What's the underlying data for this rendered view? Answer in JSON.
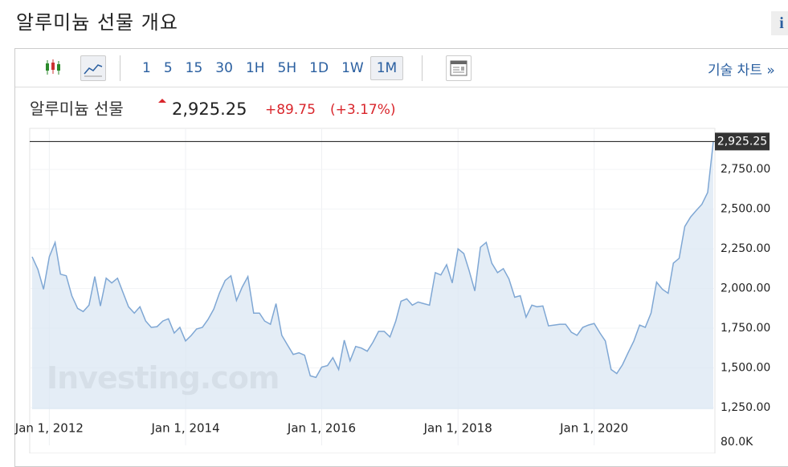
{
  "header": {
    "title": "알루미늄 선물 개요",
    "info": "i"
  },
  "toolbar": {
    "intervals": [
      "1",
      "5",
      "15",
      "30",
      "1H",
      "5H",
      "1D",
      "1W",
      "1M"
    ],
    "selected": "1M",
    "tech_chart": "기술 차트 »"
  },
  "quote": {
    "name": "알루미늄 선물",
    "price": "2,925.25",
    "change": "+89.75",
    "change_pct": "(+3.17%)"
  },
  "chart_data": {
    "type": "area",
    "watermark": "Investing.com",
    "x": [
      "2011-10",
      "2011-11",
      "2011-12",
      "2012-01",
      "2012-02",
      "2012-03",
      "2012-04",
      "2012-05",
      "2012-06",
      "2012-07",
      "2012-08",
      "2012-09",
      "2012-10",
      "2012-11",
      "2012-12",
      "2013-01",
      "2013-02",
      "2013-03",
      "2013-04",
      "2013-05",
      "2013-06",
      "2013-07",
      "2013-08",
      "2013-09",
      "2013-10",
      "2013-11",
      "2013-12",
      "2014-01",
      "2014-02",
      "2014-03",
      "2014-04",
      "2014-05",
      "2014-06",
      "2014-07",
      "2014-08",
      "2014-09",
      "2014-10",
      "2014-11",
      "2014-12",
      "2015-01",
      "2015-02",
      "2015-03",
      "2015-04",
      "2015-05",
      "2015-06",
      "2015-07",
      "2015-08",
      "2015-09",
      "2015-10",
      "2015-11",
      "2015-12",
      "2016-01",
      "2016-02",
      "2016-03",
      "2016-04",
      "2016-05",
      "2016-06",
      "2016-07",
      "2016-08",
      "2016-09",
      "2016-10",
      "2016-11",
      "2016-12",
      "2017-01",
      "2017-02",
      "2017-03",
      "2017-04",
      "2017-05",
      "2017-06",
      "2017-07",
      "2017-08",
      "2017-09",
      "2017-10",
      "2017-11",
      "2017-12",
      "2018-01",
      "2018-02",
      "2018-03",
      "2018-04",
      "2018-05",
      "2018-06",
      "2018-07",
      "2018-08",
      "2018-09",
      "2018-10",
      "2018-11",
      "2018-12",
      "2019-01",
      "2019-02",
      "2019-03",
      "2019-04",
      "2019-05",
      "2019-06",
      "2019-07",
      "2019-08",
      "2019-09",
      "2019-10",
      "2019-11",
      "2019-12",
      "2020-01",
      "2020-02",
      "2020-03",
      "2020-04",
      "2020-05",
      "2020-06",
      "2020-07",
      "2020-08",
      "2020-09",
      "2020-10",
      "2020-11",
      "2020-12",
      "2021-01",
      "2021-02",
      "2021-03",
      "2021-04",
      "2021-05",
      "2021-06",
      "2021-07",
      "2021-08",
      "2021-09",
      "2021-10"
    ],
    "series": [
      {
        "color": "#7fa7d4",
        "values": [
          2200,
          2120,
          1995,
          2200,
          2290,
          2090,
          2080,
          1955,
          1875,
          1855,
          1895,
          2075,
          1890,
          2065,
          2035,
          2065,
          1970,
          1885,
          1845,
          1885,
          1795,
          1755,
          1760,
          1795,
          1810,
          1720,
          1755,
          1670,
          1705,
          1745,
          1755,
          1805,
          1870,
          1970,
          2050,
          2080,
          1925,
          2010,
          2075,
          1845,
          1845,
          1795,
          1775,
          1905,
          1705,
          1645,
          1585,
          1595,
          1580,
          1450,
          1440,
          1505,
          1515,
          1565,
          1490,
          1675,
          1545,
          1635,
          1625,
          1605,
          1660,
          1730,
          1730,
          1695,
          1795,
          1920,
          1935,
          1895,
          1915,
          1905,
          1895,
          2100,
          2085,
          2150,
          2035,
          2250,
          2220,
          2115,
          1985,
          2260,
          2290,
          2160,
          2100,
          2125,
          2060,
          1945,
          1955,
          1820,
          1895,
          1885,
          1890,
          1765,
          1770,
          1775,
          1775,
          1725,
          1705,
          1755,
          1770,
          1780,
          1720,
          1670,
          1490,
          1465,
          1520,
          1595,
          1670,
          1770,
          1755,
          1845,
          2040,
          1995,
          1970,
          2160,
          2190,
          2390,
          2450,
          2490,
          2530,
          2605,
          2925.25
        ]
      }
    ],
    "xlim": [
      "2011-10",
      "2021-10"
    ],
    "xticks": [
      {
        "value": "2012-01",
        "label": "Jan 1, 2012"
      },
      {
        "value": "2014-01",
        "label": "Jan 1, 2014"
      },
      {
        "value": "2016-01",
        "label": "Jan 1, 2016"
      },
      {
        "value": "2018-01",
        "label": "Jan 1, 2018"
      },
      {
        "value": "2020-01",
        "label": "Jan 1, 2020"
      }
    ],
    "ylim": [
      1240,
      3008
    ],
    "yticks": [
      {
        "value": 1250,
        "label": "1,250.00"
      },
      {
        "value": 1500,
        "label": "1,500.00"
      },
      {
        "value": 1750,
        "label": "1,750.00"
      },
      {
        "value": 2000,
        "label": "2,000.00"
      },
      {
        "value": 2250,
        "label": "2,250.00"
      },
      {
        "value": 2500,
        "label": "2,500.00"
      },
      {
        "value": 2750,
        "label": "2,750.00"
      }
    ],
    "volume_ticks": [
      {
        "value": 80000,
        "label": "80.0K"
      }
    ],
    "grid": true
  }
}
